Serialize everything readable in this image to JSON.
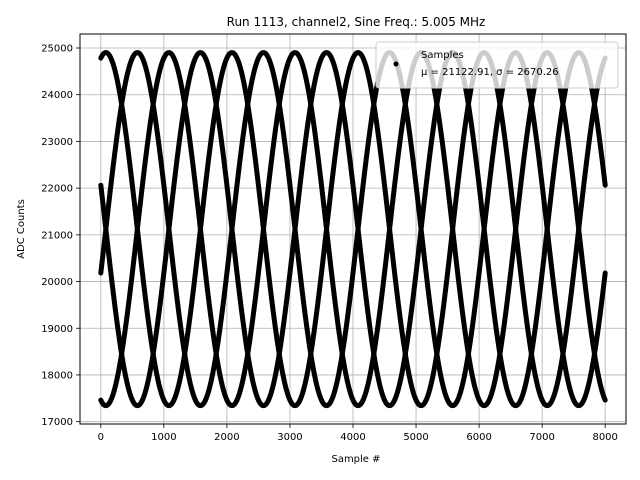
{
  "chart_data": {
    "type": "scatter",
    "title": "Run 1113, channel2, Sine Freq.: 5.005 MHz",
    "xlabel": "Sample #",
    "ylabel": "ADC Counts",
    "xlim": [
      -330,
      8330
    ],
    "ylim": [
      16950,
      25300
    ],
    "xticks": [
      0,
      1000,
      2000,
      3000,
      4000,
      5000,
      6000,
      7000,
      8000
    ],
    "xtick_labels": [
      "0",
      "1000",
      "2000",
      "3000",
      "4000",
      "5000",
      "6000",
      "7000",
      "8000"
    ],
    "yticks": [
      17000,
      18000,
      19000,
      20000,
      21000,
      22000,
      23000,
      24000,
      25000
    ],
    "ytick_labels": [
      "17000",
      "18000",
      "19000",
      "20000",
      "21000",
      "22000",
      "23000",
      "24000",
      "25000"
    ],
    "grid": true,
    "legend": {
      "placement": "top-right",
      "entries": [
        {
          "name": "Samples",
          "stats": "μ = 21122.91, σ = 2670.26"
        }
      ]
    },
    "series": [
      {
        "name": "Samples",
        "color": "#000000",
        "x_range": [
          0,
          8000
        ],
        "mean": 21122.91,
        "amplitude": 3780,
        "envelope_period": 2000,
        "phases_count": 4,
        "first_peak_x": 580
      }
    ]
  }
}
